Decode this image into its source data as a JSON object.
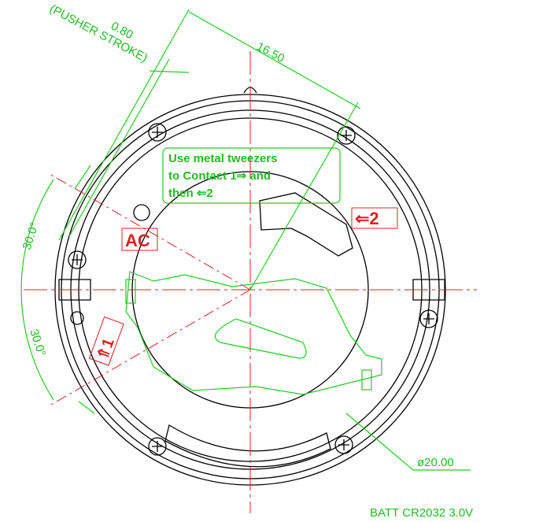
{
  "dimensions": {
    "pusher_stroke": "(PUSHER STROKE)",
    "stroke": "0.80",
    "width": "16.50",
    "angle_top": "30.0°",
    "angle_bottom": "30.0°",
    "diameter": "ø20.00"
  },
  "instructions": {
    "lines": [
      "Use metal tweezers",
      "to Contact 1⇒ and",
      "then ⇐2"
    ]
  },
  "labels": {
    "contact_2": "⇐2",
    "ac": "AC",
    "contact_1": "⇑1"
  },
  "caption": "BATT CR2032 3.0V"
}
